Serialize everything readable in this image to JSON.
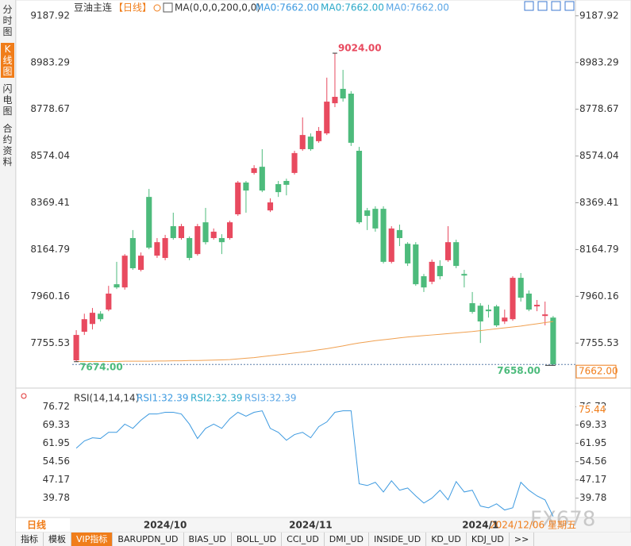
{
  "chart_data": [
    {
      "type": "candlestick",
      "title": "豆油主连",
      "period": "【日线】",
      "indicator": "MA(0,0,0,200,0,0)",
      "legend": [
        {
          "name": "MA0:7662.00",
          "color": "#3d9ae0"
        },
        {
          "name": "MA0:7662.00",
          "color": "#2aa9c9"
        },
        {
          "name": "MA0:7662.00",
          "color": "#5aa6e6"
        }
      ],
      "up_color": "#e84a5f",
      "down_color": "#4dbb7c",
      "categories": [
        null,
        null,
        null,
        null,
        null,
        null,
        null,
        null,
        null,
        null,
        null,
        "2024/10",
        null,
        null,
        null,
        null,
        null,
        null,
        null,
        null,
        null,
        null,
        null,
        null,
        null,
        null,
        null,
        null,
        null,
        "2024/11",
        null,
        null,
        null,
        null,
        null,
        null,
        null,
        null,
        null,
        null,
        null,
        null,
        null,
        null,
        null,
        null,
        null,
        null,
        null,
        null,
        "2024/1",
        null,
        null,
        null,
        null,
        null,
        null,
        null,
        null,
        null
      ],
      "open": [
        7680,
        7805,
        7839,
        7884,
        7902,
        8013,
        7999,
        8215,
        8076,
        8395,
        8138,
        8128,
        8267,
        8215,
        8215,
        8145,
        8284,
        8215,
        8215,
        8215,
        8319,
        8458,
        8500,
        8527,
        8336,
        8451,
        8465,
        8500,
        8604,
        8659,
        8639,
        8673,
        8805,
        8868,
        8847,
        8597,
        8336,
        8343,
        8343,
        8111,
        8250,
        8190,
        8187,
        8048,
        8024,
        8093,
        8118,
        8197,
        8058,
        7930,
        7919,
        7902,
        7916,
        7850,
        7860,
        8041,
        7972,
        7916,
        7874,
        7867
      ],
      "high": [
        7812,
        7884,
        7909,
        7895,
        8006,
        8111,
        8145,
        8250,
        8152,
        8430,
        8215,
        8229,
        8326,
        8277,
        8222,
        8277,
        8347,
        8257,
        8232,
        8291,
        8465,
        8465,
        8534,
        8604,
        8389,
        8465,
        8475,
        8597,
        8743,
        8673,
        8701,
        8917,
        9024,
        8951,
        8858,
        8614,
        8347,
        8354,
        8354,
        8267,
        8274,
        8197,
        8197,
        8058,
        8121,
        8118,
        8267,
        8208,
        8076,
        7979,
        7930,
        7923,
        7923,
        7902,
        8048,
        8062,
        7986,
        7944,
        7937,
        7874
      ],
      "low": [
        7674,
        7791,
        7815,
        7850,
        7895,
        7992,
        7989,
        8076,
        8069,
        8166,
        8128,
        8118,
        8208,
        8208,
        8118,
        8138,
        8187,
        8208,
        8145,
        8208,
        8312,
        8326,
        8493,
        8416,
        8329,
        8395,
        8402,
        8493,
        8597,
        8597,
        8632,
        8666,
        8788,
        8812,
        8618,
        8277,
        8250,
        8243,
        8104,
        8104,
        8180,
        8093,
        8006,
        7979,
        8013,
        8034,
        8111,
        8083,
        7999,
        7884,
        7756,
        7867,
        7826,
        7839,
        7853,
        7937,
        7895,
        7895,
        7833,
        7658
      ],
      "close": [
        7791,
        7860,
        7888,
        7860,
        7972,
        7999,
        8138,
        8083,
        8138,
        8173,
        8197,
        8215,
        8215,
        8267,
        8128,
        8267,
        8197,
        8243,
        8197,
        8284,
        8458,
        8423,
        8521,
        8423,
        8371,
        8416,
        8448,
        8587,
        8666,
        8604,
        8684,
        8812,
        8833,
        8826,
        8632,
        8284,
        8312,
        8257,
        8111,
        8257,
        8215,
        8104,
        8013,
        7999,
        8111,
        8048,
        8197,
        8093,
        8051,
        7892,
        7850,
        7895,
        7833,
        7867,
        8041,
        7954,
        7902,
        7923,
        7881,
        7662
      ],
      "ma": {
        "color": "#f0a050",
        "values": [
          7675,
          7675,
          7675,
          7675,
          7675,
          7675,
          7676,
          7676,
          7676,
          7676,
          7677,
          7677,
          7678,
          7678,
          7679,
          7679,
          7680,
          7681,
          7682,
          7683,
          7686,
          7689,
          7692,
          7696,
          7700,
          7704,
          7708,
          7712,
          7716,
          7721,
          7726,
          7731,
          7737,
          7743,
          7750,
          7756,
          7761,
          7766,
          7770,
          7774,
          7778,
          7782,
          7785,
          7788,
          7791,
          7794,
          7797,
          7800,
          7803,
          7806,
          7810,
          7814,
          7818,
          7822,
          7826,
          7830,
          7835,
          7840,
          7845,
          7850
        ]
      },
      "ylim": [
        7562,
        9229
      ],
      "yticks": [
        9187.92,
        8983.29,
        8778.67,
        8574.04,
        8369.41,
        8164.79,
        7960.16,
        7755.53
      ],
      "annotations": [
        {
          "index": 32,
          "value": 9024,
          "label": "9024.00",
          "color": "#e84a5f"
        },
        {
          "index": 0,
          "value": 7674,
          "label": "7674.00",
          "color": "#4dbb7c"
        },
        {
          "index": 59,
          "value": 7658,
          "label": "7658.00",
          "color": "#4dbb7c"
        }
      ],
      "last_price": {
        "value": 7662,
        "label": "7662.00",
        "color": "#f07d1a"
      }
    },
    {
      "type": "line",
      "title": "RSI(14,14,14)",
      "legend": [
        {
          "name": "RSI1:32.39",
          "color": "#3d9ae0"
        },
        {
          "name": "RSI2:32.39",
          "color": "#2aa9c9"
        },
        {
          "name": "RSI3:32.39",
          "color": "#5aa6e6"
        }
      ],
      "color": "#3d9ae0",
      "values": [
        60.0,
        62.9,
        64.2,
        63.9,
        66.4,
        66.4,
        69.7,
        68.0,
        71.3,
        73.8,
        73.8,
        74.5,
        74.5,
        73.8,
        69.7,
        63.9,
        68.0,
        69.7,
        68.0,
        71.9,
        74.5,
        72.9,
        74.5,
        75.1,
        68.0,
        66.4,
        63.2,
        65.5,
        66.4,
        64.2,
        68.7,
        70.6,
        74.5,
        75.1,
        75.1,
        45.6,
        44.9,
        46.2,
        42.3,
        46.8,
        43.0,
        43.9,
        40.7,
        37.8,
        39.8,
        43.0,
        39.1,
        46.5,
        42.3,
        43.0,
        36.6,
        35.9,
        37.5,
        35.0,
        35.9,
        46.2,
        43.0,
        40.7,
        39.1,
        32.39
      ],
      "ylim": [
        32,
        83
      ],
      "yticks": [
        76.72,
        69.33,
        61.95,
        54.56,
        47.17,
        39.78
      ],
      "cursor_value": 75.44
    }
  ],
  "sidebar": [
    "分时图",
    "K线图",
    "闪电图",
    "合约资料"
  ],
  "period_button": "日线",
  "cursor_date": "2024/12/06 星期五",
  "watermark": "FX678",
  "tabs": [
    "指标",
    "模板",
    "VIP指标",
    "BARUPDN_UD",
    "BIAS_UD",
    "BOLL_UD",
    "CCI_UD",
    "DMI_UD",
    "INSIDE_UD",
    "KD_UD",
    "KDJ_UD",
    ">>"
  ]
}
